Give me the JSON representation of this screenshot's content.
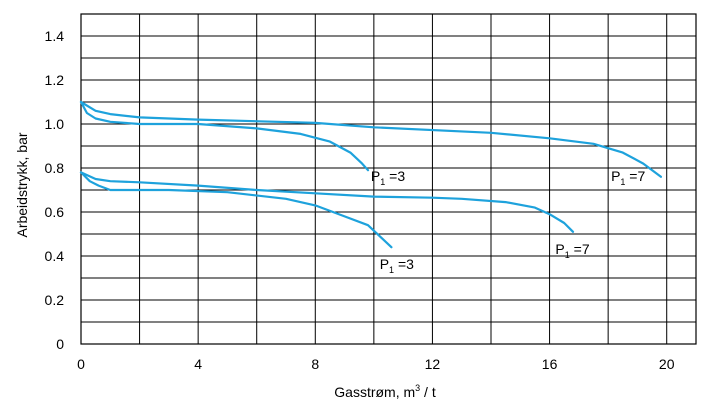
{
  "chart_data": {
    "type": "line",
    "xlabel": "Gasstrøm, m³ / t",
    "ylabel": "Arbeidstrykk,  bar",
    "xlim": [
      0,
      21
    ],
    "ylim": [
      0,
      1.5
    ],
    "x_ticks": [
      0,
      4,
      8,
      12,
      16,
      20
    ],
    "x_tick_labels": [
      "0",
      "4",
      "8",
      "12",
      "16",
      "20"
    ],
    "y_ticks": [
      0,
      0.2,
      0.4,
      0.6,
      0.8,
      1.0,
      1.2,
      1.4
    ],
    "y_tick_labels": [
      "0",
      "0.2",
      "0.4",
      "0.6",
      "0.8",
      "1.0",
      "1.2",
      "1.4"
    ],
    "grid": true,
    "color": "#1ea2dc",
    "series": [
      {
        "points": [
          [
            0,
            1.1
          ],
          [
            0.2,
            1.05
          ],
          [
            0.5,
            1.025
          ],
          [
            1,
            1.01
          ],
          [
            2,
            1.0
          ],
          [
            4,
            1.0
          ],
          [
            6,
            0.98
          ],
          [
            7.5,
            0.955
          ],
          [
            8.5,
            0.92
          ],
          [
            9.2,
            0.87
          ],
          [
            9.6,
            0.82
          ],
          [
            9.8,
            0.79
          ]
        ],
        "label": {
          "text": "P",
          "sub": "1",
          "suffix": " =3",
          "x": 9.9,
          "y": 0.74
        }
      },
      {
        "points": [
          [
            0,
            1.1
          ],
          [
            0.5,
            1.06
          ],
          [
            1,
            1.045
          ],
          [
            2,
            1.03
          ],
          [
            4,
            1.02
          ],
          [
            8,
            1.005
          ],
          [
            10,
            0.985
          ],
          [
            14,
            0.96
          ],
          [
            16,
            0.935
          ],
          [
            17.5,
            0.91
          ],
          [
            18.5,
            0.87
          ],
          [
            19.2,
            0.82
          ],
          [
            19.8,
            0.76
          ]
        ],
        "label": {
          "text": "P",
          "sub": "1",
          "suffix": " =7",
          "x": 18.1,
          "y": 0.74
        }
      },
      {
        "points": [
          [
            0,
            0.78
          ],
          [
            0.3,
            0.74
          ],
          [
            0.6,
            0.72
          ],
          [
            1,
            0.7
          ],
          [
            3,
            0.7
          ],
          [
            5,
            0.69
          ],
          [
            7,
            0.66
          ],
          [
            8,
            0.63
          ],
          [
            9,
            0.58
          ],
          [
            9.8,
            0.54
          ],
          [
            10.2,
            0.49
          ],
          [
            10.6,
            0.44
          ]
        ],
        "label": {
          "text": "P",
          "sub": "1",
          "suffix": " =3",
          "x": 10.2,
          "y": 0.34
        }
      },
      {
        "points": [
          [
            0,
            0.78
          ],
          [
            0.5,
            0.75
          ],
          [
            1,
            0.74
          ],
          [
            2,
            0.735
          ],
          [
            4,
            0.72
          ],
          [
            6,
            0.7
          ],
          [
            8,
            0.685
          ],
          [
            10,
            0.67
          ],
          [
            12,
            0.665
          ],
          [
            13,
            0.66
          ],
          [
            14.5,
            0.645
          ],
          [
            15.5,
            0.62
          ],
          [
            16,
            0.59
          ],
          [
            16.5,
            0.55
          ],
          [
            16.8,
            0.51
          ]
        ],
        "label": {
          "text": "P",
          "sub": "1",
          "suffix": " =7",
          "x": 16.2,
          "y": 0.41
        }
      }
    ]
  }
}
